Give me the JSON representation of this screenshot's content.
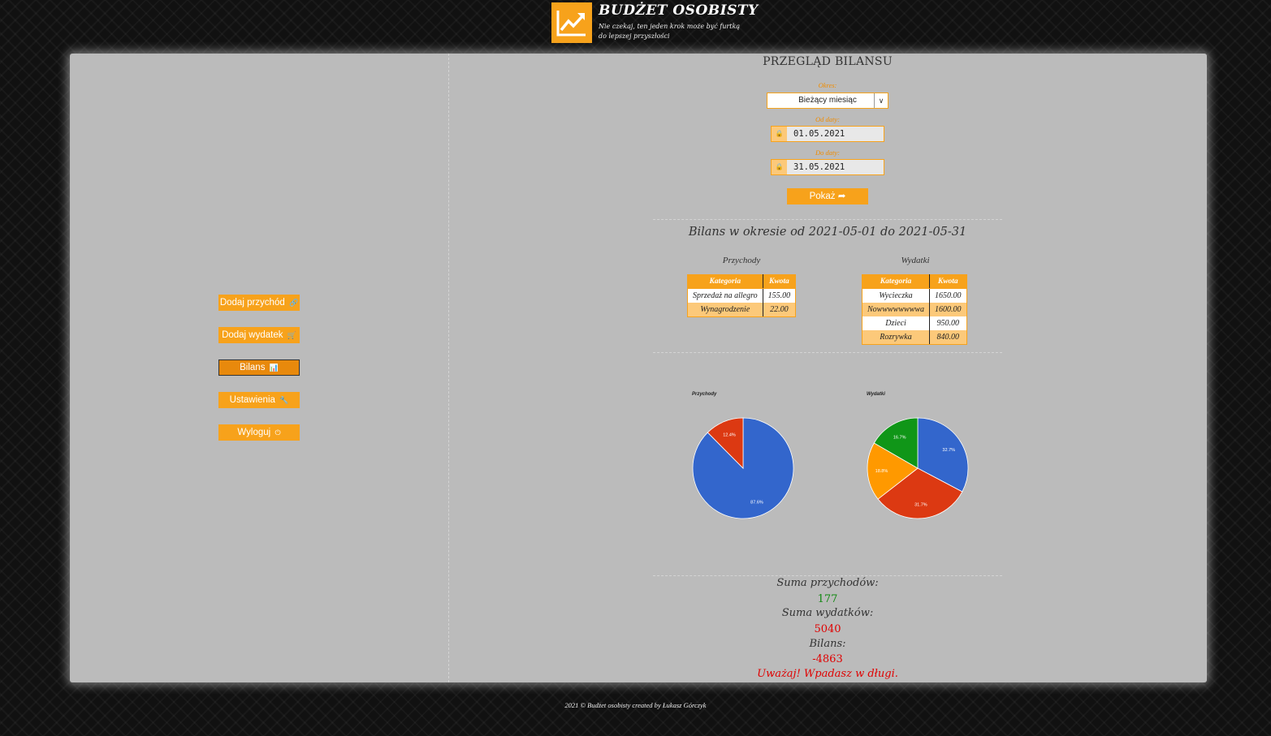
{
  "brand": {
    "title": "BUDŻET OSOBISTY",
    "subtitle_line1": "Nie czekaj, ten jeden krok może być furtką",
    "subtitle_line2": "do lepszej przyszłości",
    "accent_color": "#f7a21b",
    "logo_icon": "trending-up-icon"
  },
  "menu": {
    "items": [
      {
        "label": "Dodaj przychód",
        "icon": "🔗",
        "active": false
      },
      {
        "label": "Dodaj wydatek",
        "icon": "🛒",
        "active": false
      },
      {
        "label": "Bilans",
        "icon": "📊",
        "active": true
      },
      {
        "label": "Ustawienia",
        "icon": "🔧",
        "active": false
      },
      {
        "label": "Wyloguj",
        "icon": "⏻",
        "active": false
      }
    ]
  },
  "balance": {
    "title": "PRZEGLĄD BILANSU",
    "period_label": "Okres:",
    "period_value": "Bieżący miesiąc",
    "from_label": "Od daty:",
    "from_value": "01.05.2021",
    "to_label": "Do daty:",
    "to_value": "31.05.2021",
    "show_button": "Pokaż",
    "show_icon": "➦",
    "period_heading": "Bilans w okresie od 2021-05-01 do 2021-05-31"
  },
  "income": {
    "title": "Przychody",
    "columns": [
      "Kategoria",
      "Kwota"
    ],
    "rows": [
      [
        "Sprzedaż na allegro",
        "155.00"
      ],
      [
        "Wynagrodzenie",
        "22.00"
      ]
    ]
  },
  "expenses": {
    "title": "Wydatki",
    "columns": [
      "Kategoria",
      "Kwota"
    ],
    "rows": [
      [
        "Wycieczka",
        "1650.00"
      ],
      [
        "Nowwwwwwwwa",
        "1600.00"
      ],
      [
        "Dzieci",
        "950.00"
      ],
      [
        "Rozrywka",
        "840.00"
      ]
    ]
  },
  "chart_data": [
    {
      "type": "pie",
      "title": "Przychody",
      "slices": [
        {
          "value": 155.0,
          "percent_label": "87.6%",
          "color": "#3366cc"
        },
        {
          "value": 22.0,
          "percent_label": "12.4%",
          "color": "#dc3912"
        }
      ]
    },
    {
      "type": "pie",
      "title": "Wydatki",
      "slices": [
        {
          "value": 1650.0,
          "percent_label": "32.7%",
          "color": "#3366cc"
        },
        {
          "value": 1600.0,
          "percent_label": "31.7%",
          "color": "#dc3912"
        },
        {
          "value": 950.0,
          "percent_label": "18.8%",
          "color": "#ff9900"
        },
        {
          "value": 840.0,
          "percent_label": "16.7%",
          "color": "#109618"
        }
      ]
    }
  ],
  "summary": {
    "income_label": "Suma przychodów:",
    "income_value": "177",
    "expense_label": "Suma wydatków:",
    "expense_value": "5040",
    "balance_label": "Bilans:",
    "balance_value": "-4863",
    "warning": "Uważaj! Wpadasz w długi."
  },
  "footer": {
    "text": "2021 © Budżet osobisty created by Łukasz Górczyk"
  }
}
